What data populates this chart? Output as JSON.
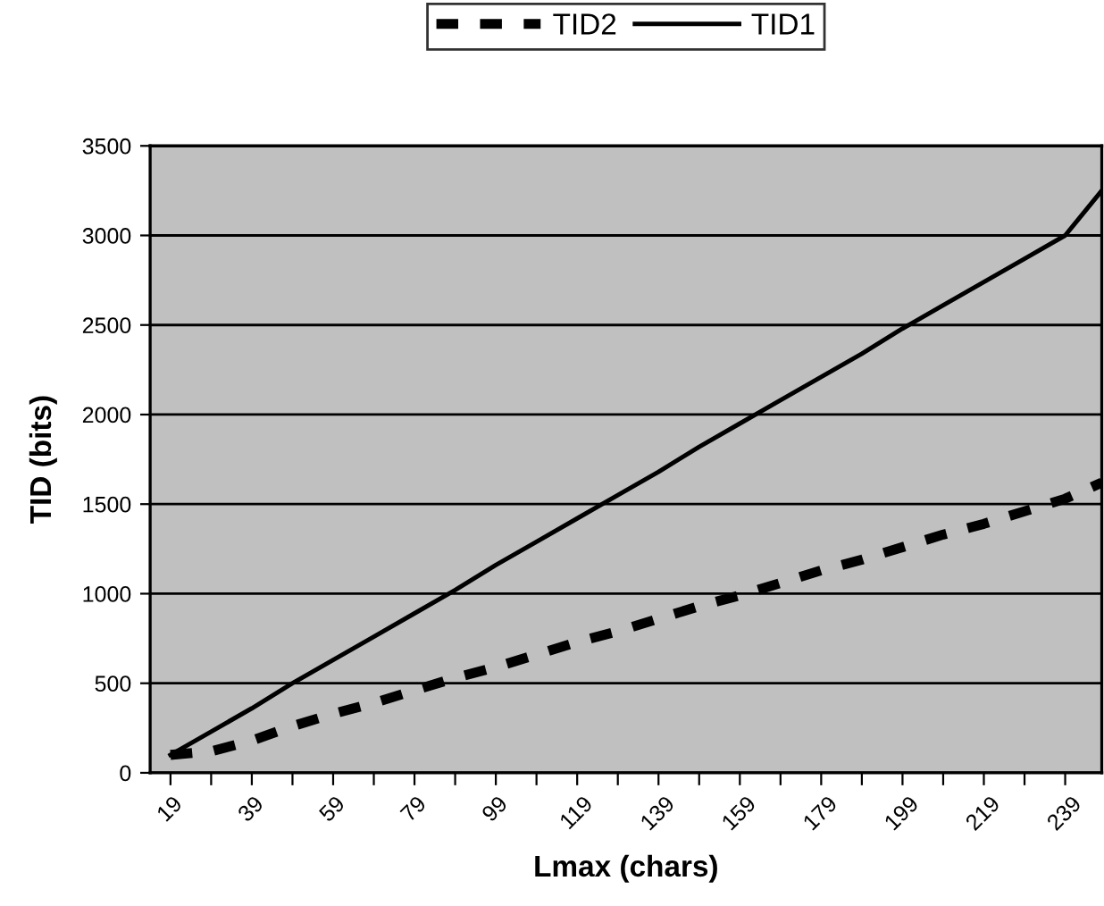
{
  "chart_data": {
    "type": "line",
    "xlabel": "Lmax (chars)",
    "ylabel": "TID (bits)",
    "xlim": [
      14,
      248
    ],
    "xticks": [
      19,
      {
        "value": 29,
        "label": null
      },
      39,
      {
        "value": 49,
        "label": null
      },
      59,
      {
        "value": 69,
        "label": null
      },
      79,
      {
        "value": 89,
        "label": null
      },
      99,
      {
        "value": 109,
        "label": null
      },
      119,
      {
        "value": 129,
        "label": null
      },
      139,
      {
        "value": 149,
        "label": null
      },
      159,
      {
        "value": 169,
        "label": null
      },
      179,
      {
        "value": 189,
        "label": null
      },
      199,
      {
        "value": 209,
        "label": null
      },
      219,
      {
        "value": 229,
        "label": null
      },
      239
    ],
    "ylim": [
      0,
      3500
    ],
    "yticks": [
      0,
      500,
      1000,
      1500,
      2000,
      2500,
      3000,
      3500
    ],
    "grid": "y",
    "legend": "top",
    "marker": "none",
    "x": [
      19,
      29,
      39,
      49,
      59,
      69,
      79,
      89,
      99,
      109,
      119,
      129,
      139,
      149,
      159,
      169,
      179,
      189,
      199,
      209,
      219,
      229,
      239,
      248
    ],
    "series": [
      {
        "name": "TID2",
        "color": "#000000",
        "line_style": "dashed",
        "values": [
          100,
          120,
          180,
          260,
          330,
          390,
          460,
          530,
          590,
          660,
          730,
          790,
          860,
          930,
          990,
          1060,
          1130,
          1190,
          1260,
          1330,
          1390,
          1460,
          1530,
          1620
        ]
      },
      {
        "name": "TID1",
        "color": "#000000",
        "line_style": "solid",
        "values": [
          100,
          230,
          360,
          500,
          630,
          760,
          890,
          1020,
          1160,
          1290,
          1420,
          1550,
          1680,
          1820,
          1950,
          2080,
          2210,
          2340,
          2480,
          2610,
          2740,
          2870,
          3000,
          3250
        ]
      }
    ]
  }
}
